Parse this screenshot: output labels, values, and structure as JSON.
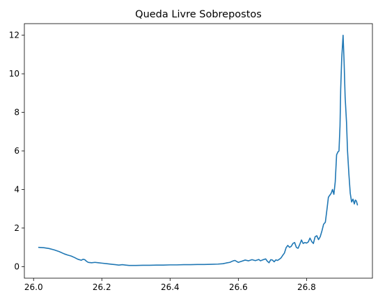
{
  "chart_data": {
    "type": "line",
    "title": "Queda Livre Sobrepostos",
    "xlabel": "",
    "ylabel": "",
    "xlim": [
      25.973,
      26.993
    ],
    "ylim": [
      -0.6,
      12.6
    ],
    "x_ticks": [
      26.0,
      26.2,
      26.4,
      26.6,
      26.8
    ],
    "x_tick_labels": [
      "26.0",
      "26.2",
      "26.4",
      "26.6",
      "26.8"
    ],
    "y_ticks": [
      0,
      2,
      4,
      6,
      8,
      10,
      12
    ],
    "y_tick_labels": [
      "0",
      "2",
      "4",
      "6",
      "8",
      "10",
      "12"
    ],
    "grid": false,
    "legend": "none",
    "series": [
      {
        "color": "#1f77b4",
        "points": [
          [
            26.015,
            1.0
          ],
          [
            26.03,
            0.98
          ],
          [
            26.045,
            0.94
          ],
          [
            26.06,
            0.87
          ],
          [
            26.075,
            0.78
          ],
          [
            26.09,
            0.66
          ],
          [
            26.1,
            0.6
          ],
          [
            26.11,
            0.55
          ],
          [
            26.12,
            0.47
          ],
          [
            26.13,
            0.38
          ],
          [
            26.14,
            0.33
          ],
          [
            26.145,
            0.38
          ],
          [
            26.15,
            0.36
          ],
          [
            26.155,
            0.28
          ],
          [
            26.16,
            0.22
          ],
          [
            26.17,
            0.2
          ],
          [
            26.18,
            0.22
          ],
          [
            26.19,
            0.2
          ],
          [
            26.2,
            0.18
          ],
          [
            26.215,
            0.15
          ],
          [
            26.23,
            0.12
          ],
          [
            26.24,
            0.1
          ],
          [
            26.25,
            0.08
          ],
          [
            26.26,
            0.1
          ],
          [
            26.27,
            0.08
          ],
          [
            26.28,
            0.06
          ],
          [
            26.3,
            0.06
          ],
          [
            26.32,
            0.07
          ],
          [
            26.34,
            0.07
          ],
          [
            26.36,
            0.08
          ],
          [
            26.38,
            0.08
          ],
          [
            26.4,
            0.09
          ],
          [
            26.42,
            0.09
          ],
          [
            26.44,
            0.1
          ],
          [
            26.46,
            0.1
          ],
          [
            26.48,
            0.11
          ],
          [
            26.5,
            0.11
          ],
          [
            26.52,
            0.12
          ],
          [
            26.54,
            0.13
          ],
          [
            26.555,
            0.15
          ],
          [
            26.565,
            0.19
          ],
          [
            26.575,
            0.22
          ],
          [
            26.585,
            0.3
          ],
          [
            26.59,
            0.32
          ],
          [
            26.6,
            0.22
          ],
          [
            26.61,
            0.28
          ],
          [
            26.62,
            0.34
          ],
          [
            26.63,
            0.3
          ],
          [
            26.64,
            0.36
          ],
          [
            26.65,
            0.31
          ],
          [
            26.66,
            0.37
          ],
          [
            26.665,
            0.3
          ],
          [
            26.67,
            0.34
          ],
          [
            26.68,
            0.4
          ],
          [
            26.685,
            0.28
          ],
          [
            26.69,
            0.2
          ],
          [
            26.695,
            0.36
          ],
          [
            26.7,
            0.34
          ],
          [
            26.705,
            0.25
          ],
          [
            26.71,
            0.35
          ],
          [
            26.715,
            0.32
          ],
          [
            26.72,
            0.38
          ],
          [
            26.725,
            0.45
          ],
          [
            26.73,
            0.58
          ],
          [
            26.735,
            0.7
          ],
          [
            26.74,
            0.98
          ],
          [
            26.745,
            1.1
          ],
          [
            26.75,
            1.0
          ],
          [
            26.755,
            1.05
          ],
          [
            26.76,
            1.2
          ],
          [
            26.765,
            1.25
          ],
          [
            26.77,
            1.0
          ],
          [
            26.775,
            0.95
          ],
          [
            26.78,
            1.15
          ],
          [
            26.785,
            1.38
          ],
          [
            26.79,
            1.2
          ],
          [
            26.795,
            1.25
          ],
          [
            26.8,
            1.22
          ],
          [
            26.805,
            1.28
          ],
          [
            26.81,
            1.48
          ],
          [
            26.815,
            1.3
          ],
          [
            26.82,
            1.2
          ],
          [
            26.825,
            1.55
          ],
          [
            26.83,
            1.6
          ],
          [
            26.835,
            1.4
          ],
          [
            26.84,
            1.55
          ],
          [
            26.845,
            1.85
          ],
          [
            26.85,
            2.2
          ],
          [
            26.855,
            2.3
          ],
          [
            26.86,
            3.0
          ],
          [
            26.864,
            3.6
          ],
          [
            26.868,
            3.7
          ],
          [
            26.872,
            3.8
          ],
          [
            26.876,
            4.0
          ],
          [
            26.88,
            3.75
          ],
          [
            26.884,
            4.4
          ],
          [
            26.888,
            5.8
          ],
          [
            26.892,
            5.95
          ],
          [
            26.895,
            6.0
          ],
          [
            26.898,
            7.3
          ],
          [
            26.9,
            9.2
          ],
          [
            26.903,
            10.8
          ],
          [
            26.907,
            12.0
          ],
          [
            26.91,
            10.6
          ],
          [
            26.913,
            8.8
          ],
          [
            26.917,
            7.5
          ],
          [
            26.92,
            6.0
          ],
          [
            26.924,
            4.8
          ],
          [
            26.928,
            3.8
          ],
          [
            26.932,
            3.35
          ],
          [
            26.936,
            3.5
          ],
          [
            26.94,
            3.25
          ],
          [
            26.943,
            3.45
          ],
          [
            26.946,
            3.4
          ],
          [
            26.949,
            3.2
          ]
        ]
      }
    ]
  }
}
